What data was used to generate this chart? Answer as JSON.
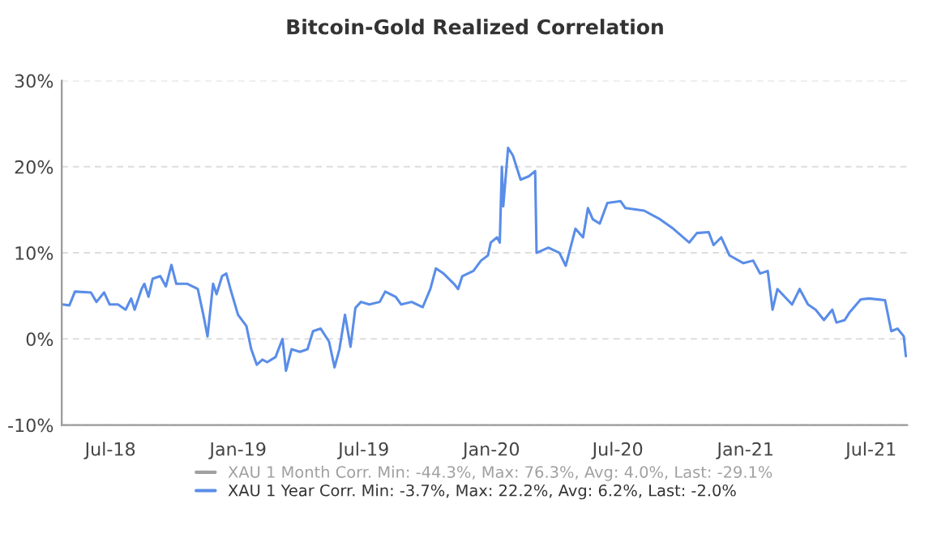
{
  "chart_data": {
    "type": "line",
    "title": "Bitcoin-Gold Realized Correlation",
    "x": [
      "2018-04-23",
      "2018-05-03",
      "2018-05-11",
      "2018-06-03",
      "2018-06-11",
      "2018-06-22",
      "2018-06-30",
      "2018-07-12",
      "2018-07-23",
      "2018-07-31",
      "2018-08-05",
      "2018-08-15",
      "2018-08-19",
      "2018-08-25",
      "2018-08-31",
      "2018-09-11",
      "2018-09-19",
      "2018-09-27",
      "2018-10-04",
      "2018-10-20",
      "2018-11-04",
      "2018-11-12",
      "2018-11-18",
      "2018-11-26",
      "2018-12-01",
      "2018-12-09",
      "2018-12-15",
      "2018-12-21",
      "2019-01-01",
      "2019-01-13",
      "2019-01-20",
      "2019-01-28",
      "2019-02-05",
      "2019-02-12",
      "2019-02-24",
      "2019-03-06",
      "2019-03-11",
      "2019-03-19",
      "2019-03-31",
      "2019-04-11",
      "2019-04-19",
      "2019-04-30",
      "2019-05-12",
      "2019-05-20",
      "2019-05-27",
      "2019-06-04",
      "2019-06-12",
      "2019-06-19",
      "2019-06-27",
      "2019-07-09",
      "2019-07-24",
      "2019-08-01",
      "2019-08-16",
      "2019-08-24",
      "2019-09-08",
      "2019-09-24",
      "2019-10-05",
      "2019-10-13",
      "2019-10-24",
      "2019-11-08",
      "2019-11-14",
      "2019-11-20",
      "2019-12-06",
      "2019-12-17",
      "2019-12-27",
      "2019-12-31",
      "2020-01-09",
      "2020-01-13",
      "2020-01-16",
      "2020-01-18",
      "2020-01-25",
      "2020-02-01",
      "2020-02-12",
      "2020-02-24",
      "2020-03-04",
      "2020-03-06",
      "2020-03-23",
      "2020-04-08",
      "2020-04-17",
      "2020-05-01",
      "2020-05-12",
      "2020-05-19",
      "2020-05-26",
      "2020-06-05",
      "2020-06-16",
      "2020-07-05",
      "2020-07-12",
      "2020-08-08",
      "2020-08-31",
      "2020-09-19",
      "2020-10-12",
      "2020-10-23",
      "2020-11-09",
      "2020-11-16",
      "2020-11-27",
      "2020-12-09",
      "2020-12-29",
      "2021-01-12",
      "2021-01-22",
      "2021-02-02",
      "2021-02-09",
      "2021-02-16",
      "2021-03-09",
      "2021-03-20",
      "2021-04-01",
      "2021-04-12",
      "2021-04-24",
      "2021-05-06",
      "2021-05-12",
      "2021-05-24",
      "2021-05-31",
      "2021-06-16",
      "2021-06-28",
      "2021-07-21",
      "2021-07-30",
      "2021-08-08",
      "2021-08-17",
      "2021-08-20"
    ],
    "series": [
      {
        "name": "XAU 1 Year Corr. Min: -3.7%, Max: 22.2%, Avg: 6.2%, Last: -2.0%",
        "color": "#5a8de8",
        "values": [
          4.0,
          3.9,
          5.5,
          5.4,
          4.3,
          5.4,
          4.0,
          4.0,
          3.4,
          4.7,
          3.4,
          5.8,
          6.4,
          4.9,
          7.0,
          7.3,
          6.1,
          8.6,
          6.4,
          6.4,
          5.8,
          2.8,
          0.3,
          6.4,
          5.2,
          7.3,
          7.6,
          5.8,
          2.8,
          1.5,
          -1.2,
          -3.0,
          -2.4,
          -2.7,
          -2.1,
          0.0,
          -3.7,
          -1.2,
          -1.5,
          -1.2,
          0.9,
          1.2,
          -0.3,
          -3.3,
          -1.2,
          2.8,
          -0.9,
          3.6,
          4.3,
          4.0,
          4.3,
          5.5,
          4.9,
          4.0,
          4.3,
          3.7,
          5.8,
          8.2,
          7.6,
          6.4,
          5.8,
          7.3,
          7.9,
          9.1,
          9.7,
          11.2,
          11.8,
          11.2,
          20.0,
          15.4,
          22.2,
          21.3,
          18.5,
          18.9,
          19.5,
          10.0,
          10.6,
          10.0,
          8.5,
          12.8,
          11.8,
          15.2,
          13.9,
          13.4,
          15.8,
          16.0,
          15.2,
          14.9,
          13.9,
          12.8,
          11.2,
          12.3,
          12.4,
          10.9,
          11.8,
          9.7,
          8.8,
          9.1,
          7.6,
          7.9,
          3.4,
          5.8,
          4.0,
          5.8,
          4.0,
          3.4,
          2.2,
          3.4,
          1.9,
          2.2,
          3.1,
          4.6,
          4.7,
          4.5,
          0.9,
          1.2,
          0.3,
          -2.0
        ]
      }
    ],
    "annotations": [
      "XAU 1 Month Corr. Min: -44.3%, Max: 76.3%, Avg: 4.0%, Last: -29.1%"
    ],
    "xlim": [
      "2018-04-22",
      "2021-08-22"
    ],
    "xticks": [
      {
        "value": "2018-07-01",
        "label": "Jul-18"
      },
      {
        "value": "2019-01-01",
        "label": "Jan-19"
      },
      {
        "value": "2019-07-01",
        "label": "Jul-19"
      },
      {
        "value": "2020-01-01",
        "label": "Jan-20"
      },
      {
        "value": "2020-07-01",
        "label": "Jul-20"
      },
      {
        "value": "2021-01-01",
        "label": "Jan-21"
      },
      {
        "value": "2021-07-01",
        "label": "Jul-21"
      }
    ],
    "ylim": [
      -10,
      30
    ],
    "yticks": [
      {
        "value": -10,
        "label": "-10%"
      },
      {
        "value": 0,
        "label": "0%"
      },
      {
        "value": 10,
        "label": "10%"
      },
      {
        "value": 20,
        "label": "20%"
      },
      {
        "value": 30,
        "label": "30%"
      }
    ],
    "grid": "y",
    "legend": "bottom",
    "line_style": "solid"
  }
}
